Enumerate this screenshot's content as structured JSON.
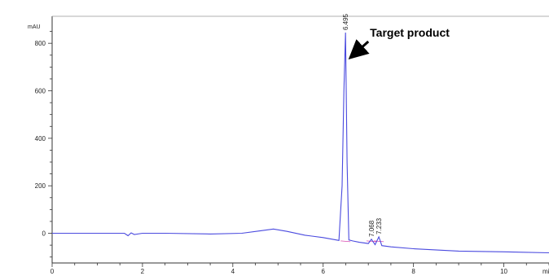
{
  "chart_data": {
    "type": "line",
    "y_unit_label": "mAU",
    "x_unit_label": "mi",
    "xlim": [
      0,
      11
    ],
    "ylim": [
      -125,
      900
    ],
    "x_ticks": [
      0,
      2,
      4,
      6,
      8,
      10
    ],
    "y_ticks": [
      0,
      200,
      400,
      600,
      800
    ],
    "grid": false,
    "series": [
      {
        "color": "#4a4adf",
        "x": [
          0,
          1.0,
          1.6,
          1.68,
          1.75,
          1.82,
          2.0,
          2.5,
          3.5,
          4.2,
          4.6,
          4.9,
          5.2,
          5.6,
          6.0,
          6.2,
          6.35,
          6.42,
          6.46,
          6.495,
          6.53,
          6.57,
          6.65,
          6.8,
          7.0,
          7.068,
          7.15,
          7.233,
          7.3,
          7.5,
          8.0,
          9.0,
          10.0,
          11.0
        ],
        "values": [
          0,
          0,
          0,
          -10,
          2,
          -5,
          0,
          0,
          -3,
          0,
          10,
          18,
          8,
          -8,
          -18,
          -25,
          -30,
          200,
          600,
          845,
          300,
          -28,
          -32,
          -38,
          -43,
          -25,
          -48,
          -15,
          -52,
          -57,
          -65,
          -75,
          -78,
          -82
        ]
      }
    ],
    "peak_labels": [
      "6.495",
      "7.068",
      "7.233"
    ],
    "peaks_x": [
      6.495,
      7.068,
      7.233
    ],
    "annotation": {
      "text": "Target product",
      "points_to_x": 6.495
    }
  }
}
